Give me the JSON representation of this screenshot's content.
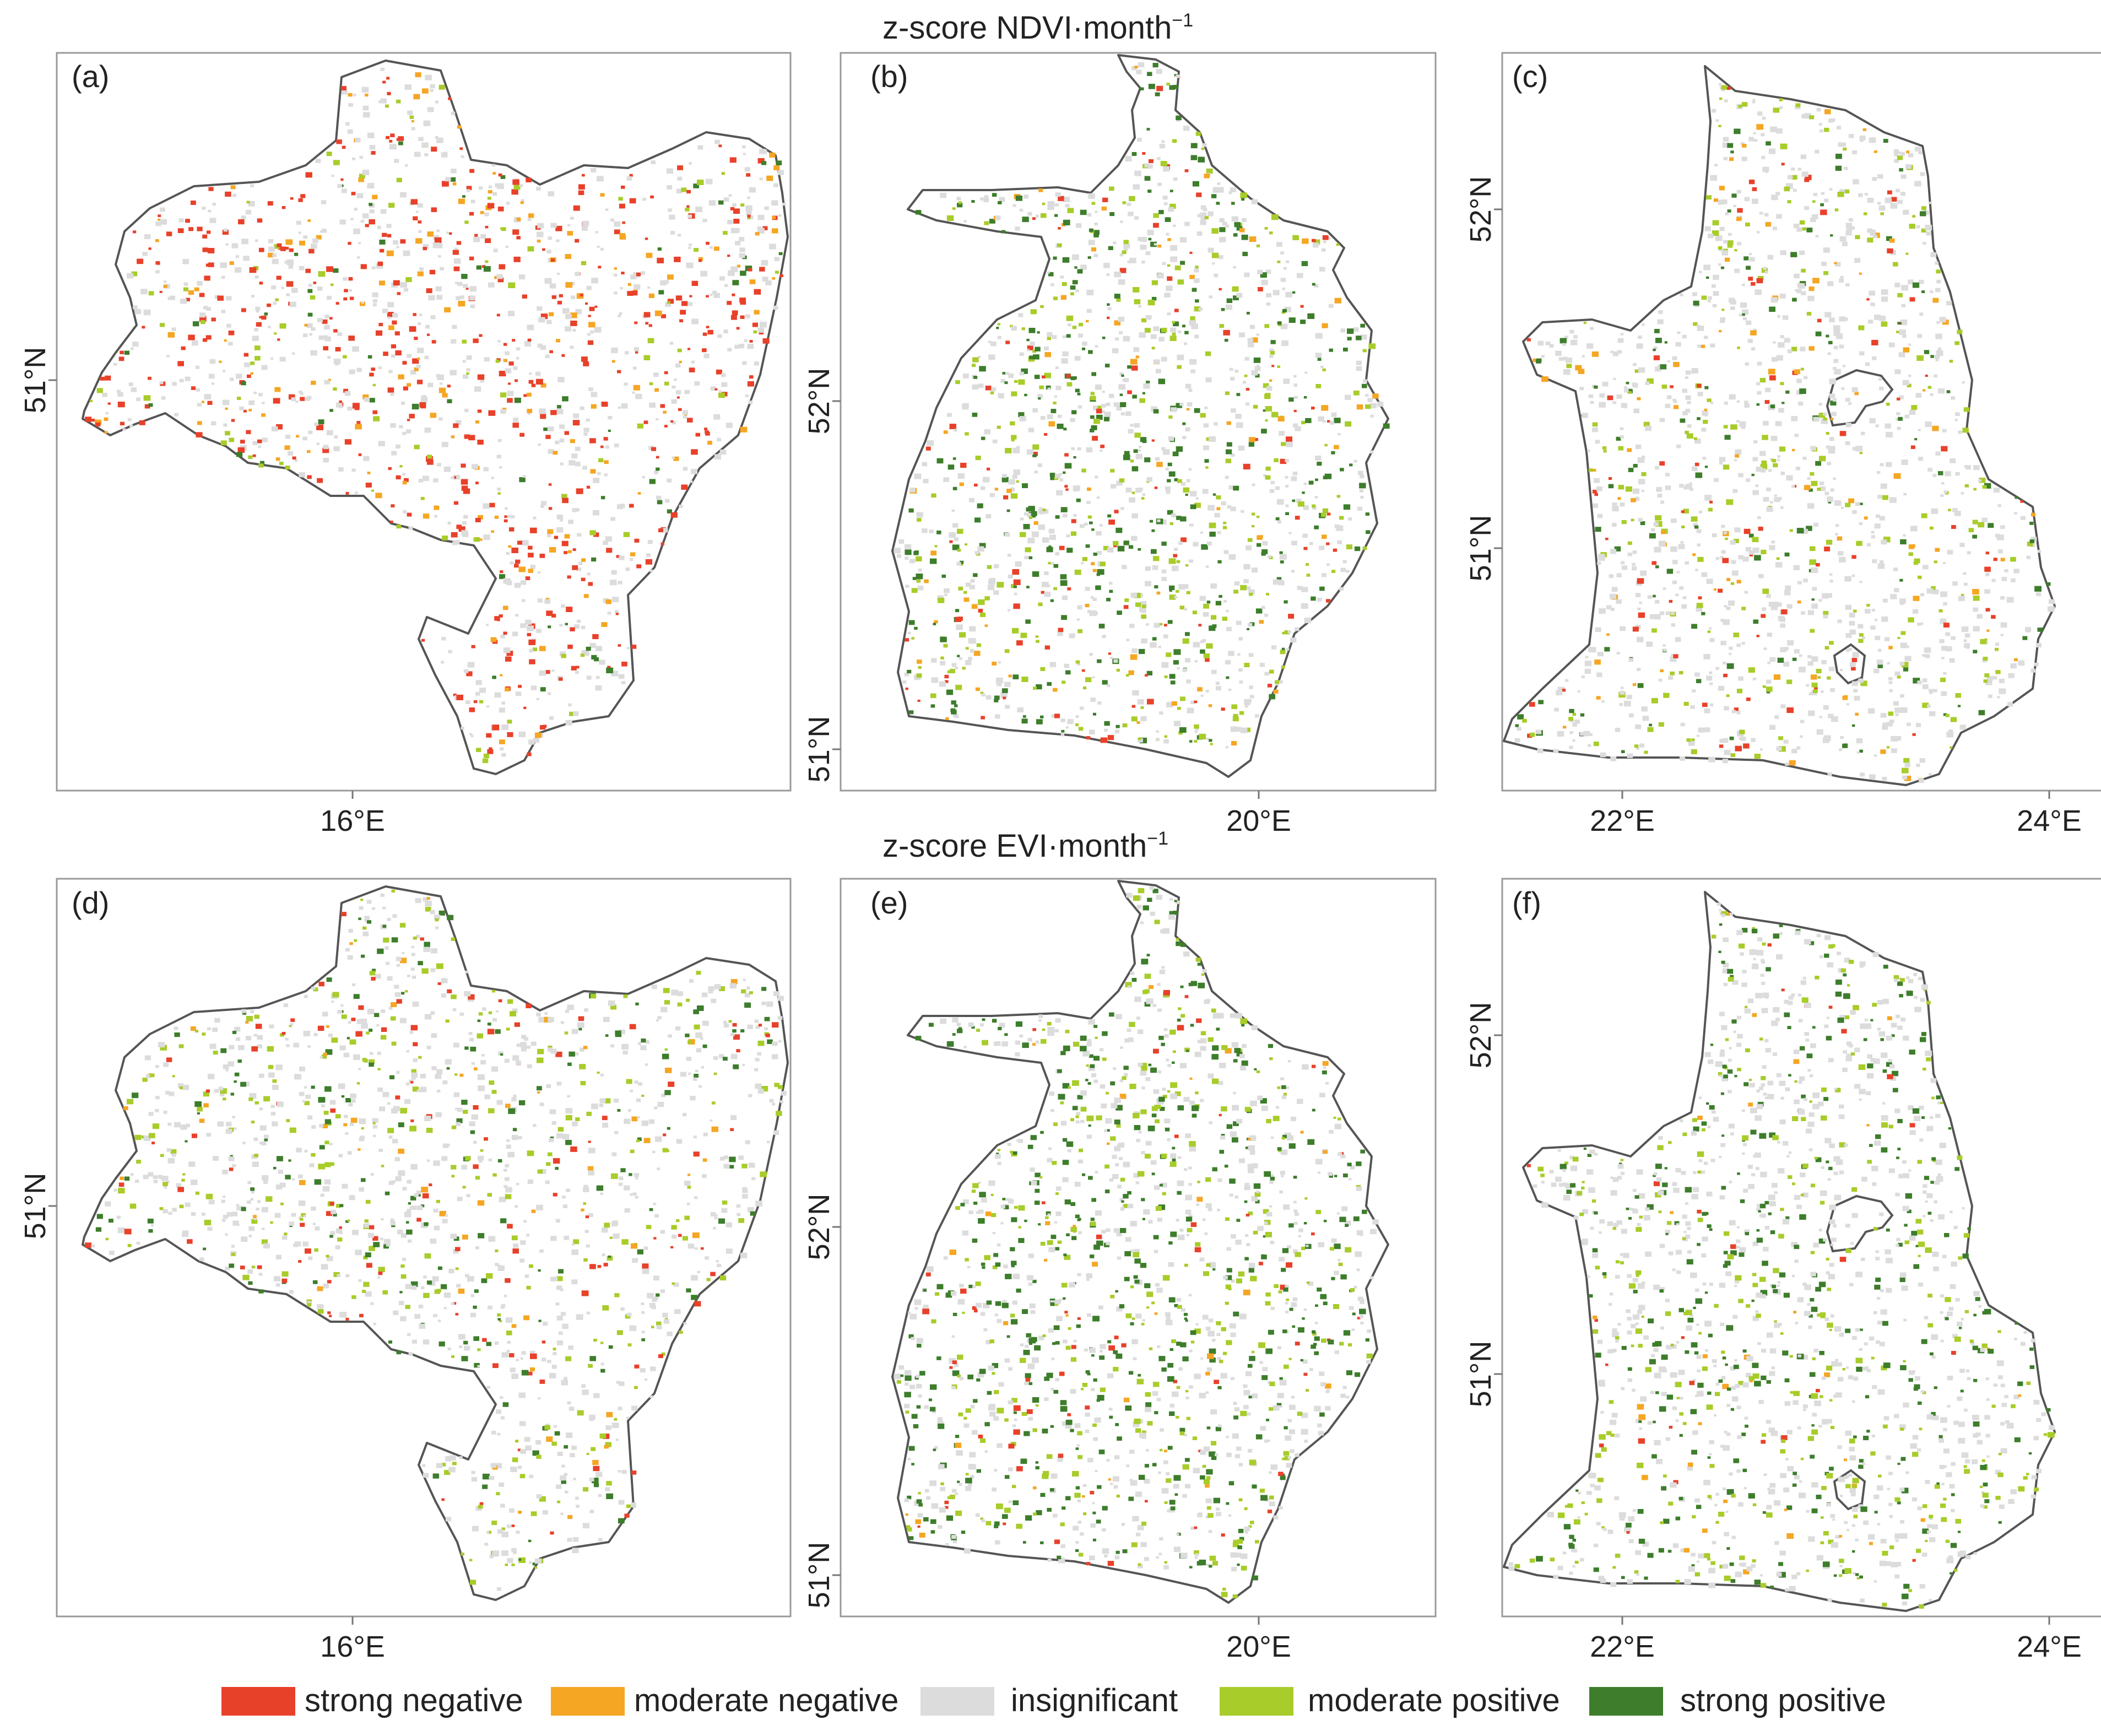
{
  "titles": {
    "top": "z-score NDVI·month",
    "top_sup": "−1",
    "bottom": "z-score EVI·month",
    "bottom_sup": "−1"
  },
  "panels": [
    {
      "label": "(a)",
      "xticks": [
        "16°E"
      ],
      "yticks": [
        "51°N"
      ],
      "mix": {
        "sn": 0.3,
        "mn": 0.1,
        "ins": 0.5,
        "mp": 0.06,
        "sp": 0.04
      }
    },
    {
      "label": "(b)",
      "xticks": [
        "20°E"
      ],
      "yticks": [
        "52°N",
        "51°N"
      ],
      "mix": {
        "sn": 0.06,
        "mn": 0.05,
        "ins": 0.45,
        "mp": 0.22,
        "sp": 0.22
      }
    },
    {
      "label": "(c)",
      "xticks": [
        "22°E",
        "24°E"
      ],
      "yticks": [
        "52°N",
        "51°N"
      ],
      "mix": {
        "sn": 0.05,
        "mn": 0.07,
        "ins": 0.66,
        "mp": 0.14,
        "sp": 0.08
      }
    },
    {
      "label": "(d)",
      "xticks": [
        "16°E"
      ],
      "yticks": [
        "51°N"
      ],
      "mix": {
        "sn": 0.08,
        "mn": 0.04,
        "ins": 0.55,
        "mp": 0.21,
        "sp": 0.12
      }
    },
    {
      "label": "(e)",
      "xticks": [
        "20°E"
      ],
      "yticks": [
        "52°N",
        "51°N"
      ],
      "mix": {
        "sn": 0.04,
        "mn": 0.02,
        "ins": 0.42,
        "mp": 0.22,
        "sp": 0.3
      }
    },
    {
      "label": "(f)",
      "xticks": [
        "22°E",
        "24°E"
      ],
      "yticks": [
        "52°N",
        "51°N"
      ],
      "mix": {
        "sn": 0.02,
        "mn": 0.02,
        "ins": 0.56,
        "mp": 0.2,
        "sp": 0.2
      }
    }
  ],
  "legend": [
    {
      "key": "sn",
      "label": "strong negative",
      "color": "#e8412a"
    },
    {
      "key": "mn",
      "label": "moderate negative",
      "color": "#f5a623"
    },
    {
      "key": "ins",
      "label": "insignificant",
      "color": "#dcdcdc"
    },
    {
      "key": "mp",
      "label": "moderate positive",
      "color": "#a8cc2a"
    },
    {
      "key": "sp",
      "label": "strong positive",
      "color": "#3d7d2b"
    }
  ]
}
